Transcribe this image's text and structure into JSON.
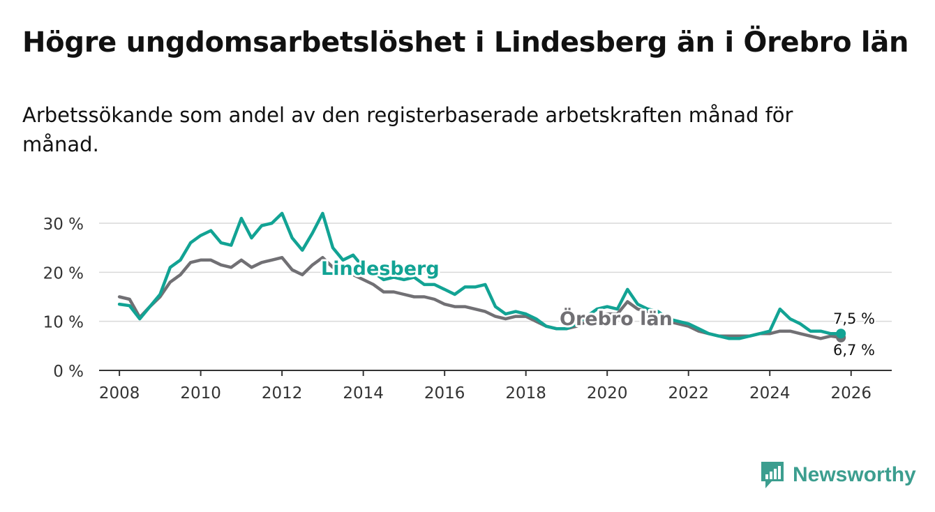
{
  "title": "Högre ungdomsarbetslöshet i Lindesberg än i Örebro län",
  "subtitle": "Arbetssökande som andel av den registerbaserade arbetskraften månad för månad.",
  "brand": {
    "name": "Newsworthy",
    "color": "#3c9e8f"
  },
  "colors": {
    "lindesberg": "#12a394",
    "orebro": "#717074",
    "grid": "#d9d9d9",
    "axis": "#333333"
  },
  "chart_data": {
    "type": "line",
    "x_start_year": 2008.0,
    "x_step_years": 0.25,
    "xticks": [
      2008,
      2010,
      2012,
      2014,
      2016,
      2018,
      2020,
      2022,
      2024,
      2026
    ],
    "xtick_labels": [
      "2008",
      "2010",
      "2012",
      "2014",
      "2016",
      "2018",
      "2020",
      "2022",
      "2024",
      "2026"
    ],
    "yticks": [
      0,
      10,
      20,
      30
    ],
    "ytick_labels": [
      "0 %",
      "10 %",
      "20 %",
      "30 %"
    ],
    "xlim": [
      2007.5,
      2027.0
    ],
    "ylim": [
      0,
      30
    ],
    "grid": true,
    "series": [
      {
        "name": "Lindesberg",
        "label": "Lindesberg",
        "end_label": "7,5 %",
        "values": [
          13.5,
          13.2,
          10.5,
          13.0,
          15.5,
          21.0,
          22.5,
          26.0,
          27.5,
          28.5,
          26.0,
          25.5,
          31.0,
          27.0,
          29.5,
          30.0,
          32.0,
          27.0,
          24.5,
          28.0,
          32.0,
          25.0,
          22.5,
          23.5,
          21.0,
          20.0,
          18.5,
          19.0,
          18.5,
          19.0,
          17.5,
          17.5,
          16.5,
          15.5,
          17.0,
          17.0,
          17.5,
          13.0,
          11.5,
          12.0,
          11.5,
          10.5,
          9.0,
          8.5,
          8.5,
          9.5,
          11.0,
          12.5,
          13.0,
          12.5,
          16.5,
          13.5,
          12.5,
          12.0,
          10.5,
          10.0,
          9.5,
          8.5,
          7.5,
          7.0,
          6.5,
          6.5,
          7.0,
          7.5,
          8.0,
          12.5,
          10.5,
          9.5,
          8.0,
          8.0,
          7.5,
          7.5
        ]
      },
      {
        "name": "Örebro län",
        "label": "Örebro län",
        "end_label": "6,7 %",
        "values": [
          15.0,
          14.5,
          10.8,
          13.0,
          15.0,
          18.0,
          19.5,
          22.0,
          22.5,
          22.5,
          21.5,
          21.0,
          22.5,
          21.0,
          22.0,
          22.5,
          23.0,
          20.5,
          19.5,
          21.5,
          23.0,
          21.0,
          20.0,
          19.5,
          18.5,
          17.5,
          16.0,
          16.0,
          15.5,
          15.0,
          15.0,
          14.5,
          13.5,
          13.0,
          13.0,
          12.5,
          12.0,
          11.0,
          10.5,
          11.0,
          11.0,
          10.0,
          9.0,
          8.5,
          8.5,
          9.0,
          10.0,
          11.0,
          11.5,
          11.5,
          14.0,
          12.5,
          12.0,
          11.0,
          10.0,
          9.5,
          9.0,
          8.0,
          7.5,
          7.0,
          7.0,
          7.0,
          7.0,
          7.5,
          7.5,
          8.0,
          8.0,
          7.5,
          7.0,
          6.5,
          7.0,
          6.7
        ]
      }
    ]
  }
}
